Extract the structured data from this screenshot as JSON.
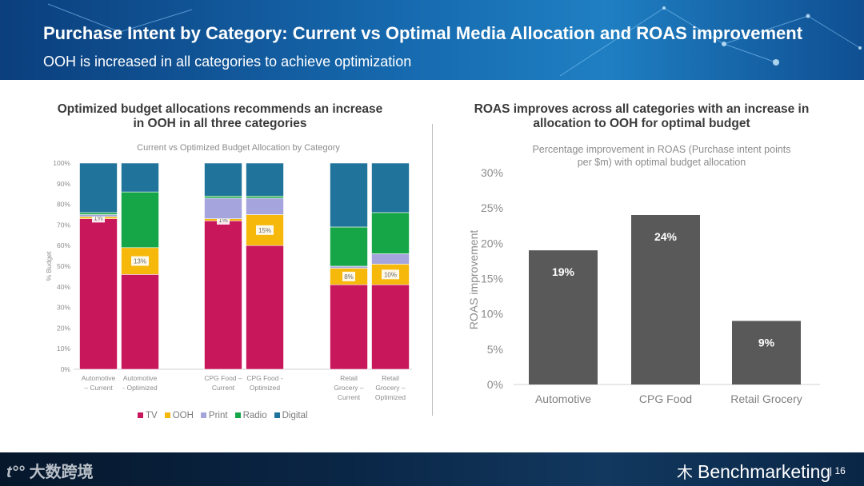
{
  "header": {
    "title": "Purchase Intent by Category: Current vs Optimal Media Allocation and ROAS improvement",
    "subtitle": "OOH is increased in all categories to achieve optimization"
  },
  "left_panel": {
    "title_line1": "Optimized budget allocations recommends an increase",
    "title_line2": "in OOH in all three categories"
  },
  "right_panel": {
    "title_line1": "ROAS improves across all categories with an increase in",
    "title_line2": "allocation to OOH for optimal budget"
  },
  "footer": {
    "watermark": "大数跨境",
    "brand": "Benchmarketing",
    "page_number": "16"
  },
  "chart_data": [
    {
      "type": "bar",
      "stacked": true,
      "title": "Current vs Optimized Budget Allocation by Category",
      "ylabel": "% Budget",
      "ylim": [
        0,
        100
      ],
      "y_ticks": [
        "0%",
        "10%",
        "20%",
        "30%",
        "40%",
        "50%",
        "60%",
        "70%",
        "80%",
        "90%",
        "100%"
      ],
      "categories": [
        [
          "Automotive",
          "– Current"
        ],
        [
          "Automotive",
          "- Optimized"
        ],
        [
          "CPG Food –",
          "Current"
        ],
        [
          "CPG Food -",
          "Optimized"
        ],
        [
          "Retail",
          "Grocery –",
          "Current"
        ],
        [
          "Retail",
          "Grocery –",
          "Optimized"
        ]
      ],
      "series": [
        {
          "name": "TV",
          "color": "#c8175b",
          "values": [
            73,
            46,
            72,
            60,
            41,
            41
          ]
        },
        {
          "name": "OOH",
          "color": "#f5b80b",
          "values": [
            1,
            13,
            1,
            15,
            8,
            10
          ]
        },
        {
          "name": "Print",
          "color": "#a5a4dc",
          "values": [
            1,
            0,
            10,
            8,
            1,
            5
          ]
        },
        {
          "name": "Radio",
          "color": "#17a647",
          "values": [
            1,
            27,
            1,
            1,
            19,
            20
          ]
        },
        {
          "name": "Digital",
          "color": "#20739a",
          "values": [
            24,
            14,
            16,
            16,
            31,
            24
          ]
        }
      ],
      "ooh_labels": [
        "1%",
        "13%",
        "1%",
        "15%",
        "8%",
        "10%"
      ],
      "legend_position": "bottom"
    },
    {
      "type": "bar",
      "title": "Percentage improvement in ROAS (Purchase intent points per $m) with optimal budget allocation",
      "title_lines": [
        "Percentage improvement in ROAS (Purchase intent points",
        "per $m) with optimal budget allocation"
      ],
      "ylabel": "ROAS improvement",
      "ylim": [
        0,
        30
      ],
      "y_ticks": [
        "0%",
        "5%",
        "10%",
        "15%",
        "20%",
        "25%",
        "30%"
      ],
      "categories": [
        "Automotive",
        "CPG Food",
        "Retail Grocery"
      ],
      "values": [
        19,
        24,
        9
      ],
      "data_labels": [
        "19%",
        "24%",
        "9%"
      ],
      "color": "#595959",
      "grid": false
    }
  ]
}
